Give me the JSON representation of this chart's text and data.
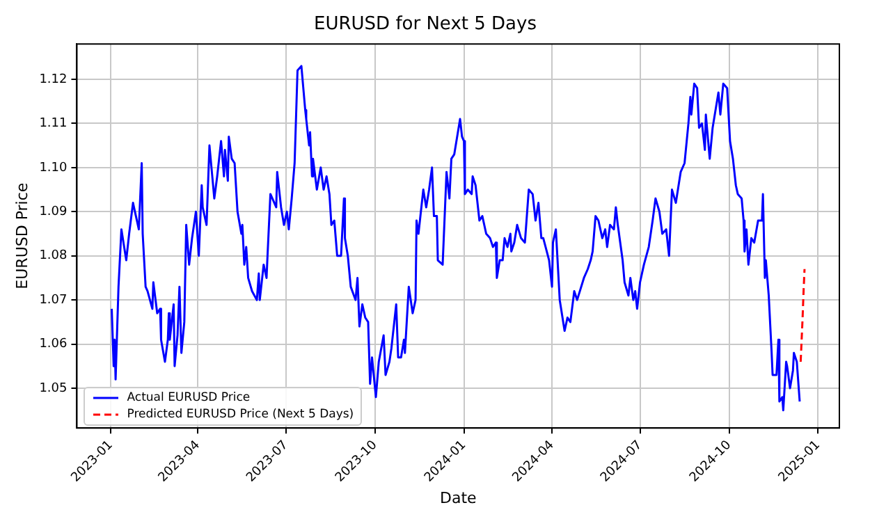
{
  "chart_data": {
    "type": "line",
    "title": "EURUSD for Next 5 Days",
    "xlabel": "Date",
    "ylabel": "EURUSD Price",
    "xlim": [
      "2022-11-27",
      "2025-01-23"
    ],
    "ylim": [
      1.041,
      1.128
    ],
    "xticks": [
      "2023-01",
      "2023-04",
      "2023-07",
      "2023-10",
      "2024-01",
      "2024-04",
      "2024-07",
      "2024-10",
      "2025-01"
    ],
    "yticks": [
      1.05,
      1.06,
      1.07,
      1.08,
      1.09,
      {
        "value": 1.1,
        "label": "1.10"
      },
      1.11,
      1.12
    ],
    "grid": true,
    "legend": "bottom left",
    "marker": "none",
    "series": [
      {
        "name": "Actual EURUSD Price",
        "color": "#0000ff",
        "line_style": "solid",
        "x": [
          "2023-01-02",
          "2023-01-04",
          "2023-01-05",
          "2023-01-06",
          "2023-01-09",
          "2023-01-12",
          "2023-01-17",
          "2023-01-20",
          "2023-01-24",
          "2023-01-30",
          "2023-02-02",
          "2023-02-03",
          "2023-02-06",
          "2023-02-08",
          "2023-02-13",
          "2023-02-14",
          "2023-02-18",
          "2023-02-21",
          "2023-02-22",
          "2023-02-26",
          "2023-03-01",
          "2023-03-02",
          "2023-03-03",
          "2023-03-07",
          "2023-03-08",
          "2023-03-11",
          "2023-03-13",
          "2023-03-15",
          "2023-03-18",
          "2023-03-20",
          "2023-03-23",
          "2023-03-26",
          "2023-03-30",
          "2023-04-02",
          "2023-04-05",
          "2023-04-06",
          "2023-04-10",
          "2023-04-13",
          "2023-04-18",
          "2023-04-21",
          "2023-04-25",
          "2023-04-28",
          "2023-04-29",
          "2023-05-02",
          "2023-05-03",
          "2023-05-06",
          "2023-05-09",
          "2023-05-12",
          "2023-05-16",
          "2023-05-17",
          "2023-05-19",
          "2023-05-21",
          "2023-05-23",
          "2023-05-27",
          "2023-06-01",
          "2023-06-03",
          "2023-06-04",
          "2023-06-08",
          "2023-06-11",
          "2023-06-12",
          "2023-06-15",
          "2023-06-21",
          "2023-06-22",
          "2023-06-26",
          "2023-06-29",
          "2023-07-02",
          "2023-07-04",
          "2023-07-07",
          "2023-07-10",
          "2023-07-13",
          "2023-07-17",
          "2023-07-21",
          "2023-07-22",
          "2023-07-25",
          "2023-07-26",
          "2023-07-28",
          "2023-07-29",
          "2023-08-02",
          "2023-08-06",
          "2023-08-09",
          "2023-08-12",
          "2023-08-15",
          "2023-08-17",
          "2023-08-20",
          "2023-08-23",
          "2023-08-27",
          "2023-08-30",
          "2023-08-31",
          "2023-09-03",
          "2023-09-06",
          "2023-09-11",
          "2023-09-13",
          "2023-09-15",
          "2023-09-18",
          "2023-09-21",
          "2023-09-24",
          "2023-09-26",
          "2023-09-28",
          "2023-09-29",
          "2023-10-02",
          "2023-10-05",
          "2023-10-10",
          "2023-10-12",
          "2023-10-16",
          "2023-10-18",
          "2023-10-23",
          "2023-10-25",
          "2023-10-28",
          "2023-10-31",
          "2023-11-01",
          "2023-11-05",
          "2023-11-09",
          "2023-11-12",
          "2023-11-13",
          "2023-11-15",
          "2023-11-20",
          "2023-11-23",
          "2023-11-26",
          "2023-11-29",
          "2023-12-01",
          "2023-12-04",
          "2023-12-05",
          "2023-12-10",
          "2023-12-14",
          "2023-12-17",
          "2023-12-19",
          "2023-12-22",
          "2023-12-28",
          "2023-12-30",
          "2024-01-01",
          "2024-01-02",
          "2024-01-05",
          "2024-01-09",
          "2024-01-10",
          "2024-01-13",
          "2024-01-17",
          "2024-01-20",
          "2024-01-24",
          "2024-01-28",
          "2024-01-31",
          "2024-02-03",
          "2024-02-04",
          "2024-02-07",
          "2024-02-10",
          "2024-02-12",
          "2024-02-15",
          "2024-02-18",
          "2024-02-19",
          "2024-02-22",
          "2024-02-25",
          "2024-02-29",
          "2024-03-04",
          "2024-03-08",
          "2024-03-12",
          "2024-03-15",
          "2024-03-18",
          "2024-03-21",
          "2024-03-23",
          "2024-03-29",
          "2024-04-01",
          "2024-04-02",
          "2024-04-05",
          "2024-04-09",
          "2024-04-14",
          "2024-04-17",
          "2024-04-20",
          "2024-04-24",
          "2024-04-27",
          "2024-05-04",
          "2024-05-08",
          "2024-05-11",
          "2024-05-13",
          "2024-05-16",
          "2024-05-19",
          "2024-05-23",
          "2024-05-26",
          "2024-05-28",
          "2024-05-31",
          "2024-06-04",
          "2024-06-06",
          "2024-06-08",
          "2024-06-13",
          "2024-06-15",
          "2024-06-19",
          "2024-06-21",
          "2024-06-24",
          "2024-06-26",
          "2024-06-28",
          "2024-07-01",
          "2024-07-05",
          "2024-07-10",
          "2024-07-14",
          "2024-07-17",
          "2024-07-21",
          "2024-07-24",
          "2024-07-28",
          "2024-07-31",
          "2024-08-03",
          "2024-08-07",
          "2024-08-12",
          "2024-08-16",
          "2024-08-20",
          "2024-08-22",
          "2024-08-23",
          "2024-08-26",
          "2024-08-29",
          "2024-08-31",
          "2024-09-03",
          "2024-09-06",
          "2024-09-07",
          "2024-09-11",
          "2024-09-14",
          "2024-09-20",
          "2024-09-22",
          "2024-09-25",
          "2024-09-29",
          "2024-10-02",
          "2024-10-05",
          "2024-10-08",
          "2024-10-10",
          "2024-10-14",
          "2024-10-16",
          "2024-10-17",
          "2024-10-19",
          "2024-10-21",
          "2024-10-24",
          "2024-10-27",
          "2024-10-31",
          "2024-11-04",
          "2024-11-05",
          "2024-11-07",
          "2024-11-08",
          "2024-11-11",
          "2024-11-14",
          "2024-11-15",
          "2024-11-19",
          "2024-11-21",
          "2024-11-22",
          "2024-11-25",
          "2024-11-26",
          "2024-11-29",
          "2024-11-30",
          "2024-12-03",
          "2024-12-06",
          "2024-12-07",
          "2024-12-10",
          "2024-12-13"
        ],
        "values": [
          1.068,
          1.055,
          1.061,
          1.052,
          1.073,
          1.086,
          1.079,
          1.085,
          1.092,
          1.086,
          1.101,
          1.085,
          1.073,
          1.072,
          1.068,
          1.074,
          1.067,
          1.068,
          1.061,
          1.056,
          1.061,
          1.067,
          1.061,
          1.069,
          1.055,
          1.062,
          1.073,
          1.058,
          1.065,
          1.087,
          1.078,
          1.084,
          1.09,
          1.08,
          1.096,
          1.091,
          1.087,
          1.105,
          1.093,
          1.098,
          1.106,
          1.098,
          1.104,
          1.097,
          1.107,
          1.102,
          1.101,
          1.09,
          1.085,
          1.087,
          1.078,
          1.082,
          1.075,
          1.072,
          1.07,
          1.076,
          1.07,
          1.078,
          1.075,
          1.08,
          1.094,
          1.091,
          1.099,
          1.091,
          1.087,
          1.09,
          1.086,
          1.093,
          1.101,
          1.122,
          1.123,
          1.113,
          1.111,
          1.105,
          1.108,
          1.098,
          1.102,
          1.095,
          1.1,
          1.095,
          1.098,
          1.094,
          1.087,
          1.088,
          1.08,
          1.08,
          1.093,
          1.084,
          1.08,
          1.073,
          1.07,
          1.075,
          1.064,
          1.069,
          1.066,
          1.065,
          1.051,
          1.057,
          1.057,
          1.048,
          1.056,
          1.062,
          1.053,
          1.056,
          1.059,
          1.069,
          1.057,
          1.057,
          1.061,
          1.058,
          1.073,
          1.067,
          1.07,
          1.088,
          1.085,
          1.095,
          1.091,
          1.095,
          1.1,
          1.089,
          1.089,
          1.079,
          1.078,
          1.099,
          1.093,
          1.102,
          1.103,
          1.111,
          1.107,
          1.106,
          1.094,
          1.095,
          1.094,
          1.098,
          1.096,
          1.088,
          1.089,
          1.085,
          1.084,
          1.082,
          1.083,
          1.075,
          1.079,
          1.079,
          1.084,
          1.082,
          1.085,
          1.081,
          1.083,
          1.087,
          1.084,
          1.083,
          1.095,
          1.094,
          1.088,
          1.092,
          1.084,
          1.084,
          1.079,
          1.073,
          1.083,
          1.086,
          1.07,
          1.063,
          1.066,
          1.065,
          1.072,
          1.07,
          1.075,
          1.077,
          1.079,
          1.081,
          1.089,
          1.088,
          1.084,
          1.086,
          1.082,
          1.087,
          1.086,
          1.091,
          1.087,
          1.079,
          1.074,
          1.071,
          1.075,
          1.07,
          1.072,
          1.068,
          1.074,
          1.078,
          1.082,
          1.088,
          1.093,
          1.09,
          1.085,
          1.086,
          1.08,
          1.095,
          1.092,
          1.099,
          1.101,
          1.11,
          1.116,
          1.112,
          1.119,
          1.118,
          1.109,
          1.11,
          1.104,
          1.112,
          1.102,
          1.109,
          1.117,
          1.112,
          1.119,
          1.118,
          1.106,
          1.102,
          1.096,
          1.094,
          1.093,
          1.088,
          1.081,
          1.086,
          1.078,
          1.084,
          1.083,
          1.088,
          1.088,
          1.094,
          1.075,
          1.079,
          1.071,
          1.058,
          1.053,
          1.053,
          1.061,
          1.047,
          1.048,
          1.045,
          1.056,
          1.055,
          1.05,
          1.054,
          1.058,
          1.056,
          1.047
        ]
      },
      {
        "name": "Predicted EURUSD Price (Next 5 Days)",
        "color": "#ff0000",
        "line_style": "dashed",
        "x": [
          "2024-12-14",
          "2024-12-15",
          "2024-12-16",
          "2024-12-17",
          "2024-12-18"
        ],
        "values": [
          1.056,
          1.061,
          1.066,
          1.072,
          1.077
        ]
      }
    ]
  }
}
